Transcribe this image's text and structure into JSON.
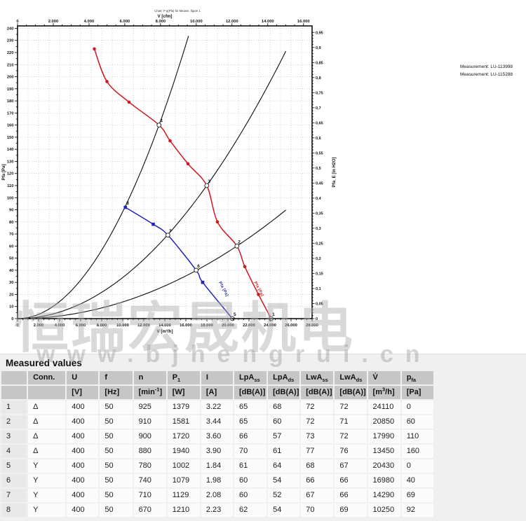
{
  "chart": {
    "measurements": [
      "Measurement: LU-113998",
      "Measurement: LU-115288"
    ]
  },
  "chart_data": {
    "type": "line",
    "tiny_title": "Chart: P-q(Pfa) for Measm, figure 1",
    "x_axis_bottom": {
      "label": "V [m³/h]",
      "min": 0,
      "max": 28000,
      "tick_step": 2000,
      "minor_step": 500,
      "grid_step": 1000
    },
    "x_axis_top": {
      "label": "V [cfm]",
      "min": 0,
      "max": 16000,
      "tick_step": 2000,
      "minor_step": 500,
      "cfm_to_m3h": 1.699
    },
    "y_axis_left": {
      "label": "Pfa [Pa]",
      "min": 0,
      "max": 240,
      "tick_step": 10,
      "minor_step": 5
    },
    "y_axis_right": {
      "label": "Pfa_E [in H2O]",
      "min": 0,
      "max": 0.95,
      "tick_step": 0.05,
      "minor_step": 0.01,
      "inh2o_to_pa": 249.089
    },
    "series": [
      {
        "name": "fan-curve-delta",
        "curve_label": "Pfa [Pa]",
        "color": "#d01822",
        "marker": "circle",
        "label_anchor": {
          "v": 22950,
          "p": 30
        },
        "points": [
          {
            "v": 7300,
            "p": 223
          },
          {
            "v": 8500,
            "p": 196
          },
          {
            "v": 10600,
            "p": 179
          },
          {
            "v": 13450,
            "p": 160,
            "n": "4",
            "m": "open"
          },
          {
            "v": 14500,
            "p": 147
          },
          {
            "v": 16200,
            "p": 128
          },
          {
            "v": 17990,
            "p": 110,
            "n": "3",
            "m": "open"
          },
          {
            "v": 19000,
            "p": 80
          },
          {
            "v": 20850,
            "p": 60,
            "n": "2",
            "m": "open"
          },
          {
            "v": 21600,
            "p": 43
          },
          {
            "v": 22900,
            "p": 20
          },
          {
            "v": 24110,
            "p": 0,
            "n": "1",
            "m": "open"
          }
        ]
      },
      {
        "name": "fan-curve-star",
        "curve_label": "Pfa [Pa]",
        "color": "#2323b8",
        "marker": "square",
        "label_anchor": {
          "v": 19600,
          "p": 30
        },
        "points": [
          {
            "v": 10250,
            "p": 92,
            "n": "8",
            "m": "square"
          },
          {
            "v": 12900,
            "p": 78
          },
          {
            "v": 14290,
            "p": 69,
            "n": "7",
            "m": "open"
          },
          {
            "v": 16980,
            "p": 40,
            "n": "6",
            "m": "open"
          },
          {
            "v": 17600,
            "p": 30
          },
          {
            "v": 20430,
            "p": 0,
            "n": "5",
            "m": "open"
          }
        ]
      }
    ],
    "system_curves": [
      {
        "name": "system-curve-points-4-8",
        "k": 8.85e-07,
        "v_end": 16300
      },
      {
        "name": "system-curve-points-3-7",
        "k": 3.4e-07,
        "v_end": 25600
      },
      {
        "name": "system-curve-points-2-6",
        "k": 1.38e-07,
        "v_end": 25600
      }
    ],
    "grid": true
  },
  "watermarks": {
    "chinese": "恒瑞宏晟机电",
    "url": "www.bjhengrui.cn"
  },
  "table": {
    "heading": "Measured values",
    "columns": [
      {
        "label": "",
        "unit": ""
      },
      {
        "label": "Conn.",
        "unit": ""
      },
      {
        "label": "U",
        "unit": "[V]"
      },
      {
        "label": "f",
        "unit": "[Hz]"
      },
      {
        "label": "n",
        "unit": "[min^-1^]"
      },
      {
        "label": "P~1~",
        "unit": "[W]"
      },
      {
        "label": "I",
        "unit": "[A]"
      },
      {
        "label": "LpA~ss~",
        "unit": "[dB(A)]"
      },
      {
        "label": "LpA~ds~",
        "unit": "[dB(A)]"
      },
      {
        "label": "LwA~ss~",
        "unit": "[dB(A)]"
      },
      {
        "label": "LwA~ds~",
        "unit": "[dB(A)]"
      },
      {
        "label": "V̇",
        "unit": "[m^3^/h]"
      },
      {
        "label": "p~fa~",
        "unit": "[Pa]"
      }
    ],
    "rows": [
      [
        "1",
        "Δ",
        "400",
        "50",
        "925",
        "1379",
        "3.22",
        "65",
        "68",
        "72",
        "72",
        "24110",
        "0"
      ],
      [
        "2",
        "Δ",
        "400",
        "50",
        "910",
        "1581",
        "3.44",
        "65",
        "60",
        "72",
        "71",
        "20850",
        "60"
      ],
      [
        "3",
        "Δ",
        "400",
        "50",
        "900",
        "1720",
        "3.60",
        "66",
        "57",
        "73",
        "72",
        "17990",
        "110"
      ],
      [
        "4",
        "Δ",
        "400",
        "50",
        "880",
        "1940",
        "3.90",
        "70",
        "61",
        "77",
        "76",
        "13450",
        "160"
      ],
      [
        "5",
        "Y",
        "400",
        "50",
        "780",
        "1002",
        "1.84",
        "61",
        "64",
        "68",
        "67",
        "20430",
        "0"
      ],
      [
        "6",
        "Y",
        "400",
        "50",
        "740",
        "1079",
        "1.98",
        "60",
        "54",
        "66",
        "66",
        "16980",
        "40"
      ],
      [
        "7",
        "Y",
        "400",
        "50",
        "710",
        "1129",
        "2.08",
        "60",
        "52",
        "67",
        "66",
        "14290",
        "69"
      ],
      [
        "8",
        "Y",
        "400",
        "50",
        "670",
        "1210",
        "2.23",
        "62",
        "54",
        "70",
        "69",
        "10250",
        "92"
      ]
    ]
  }
}
